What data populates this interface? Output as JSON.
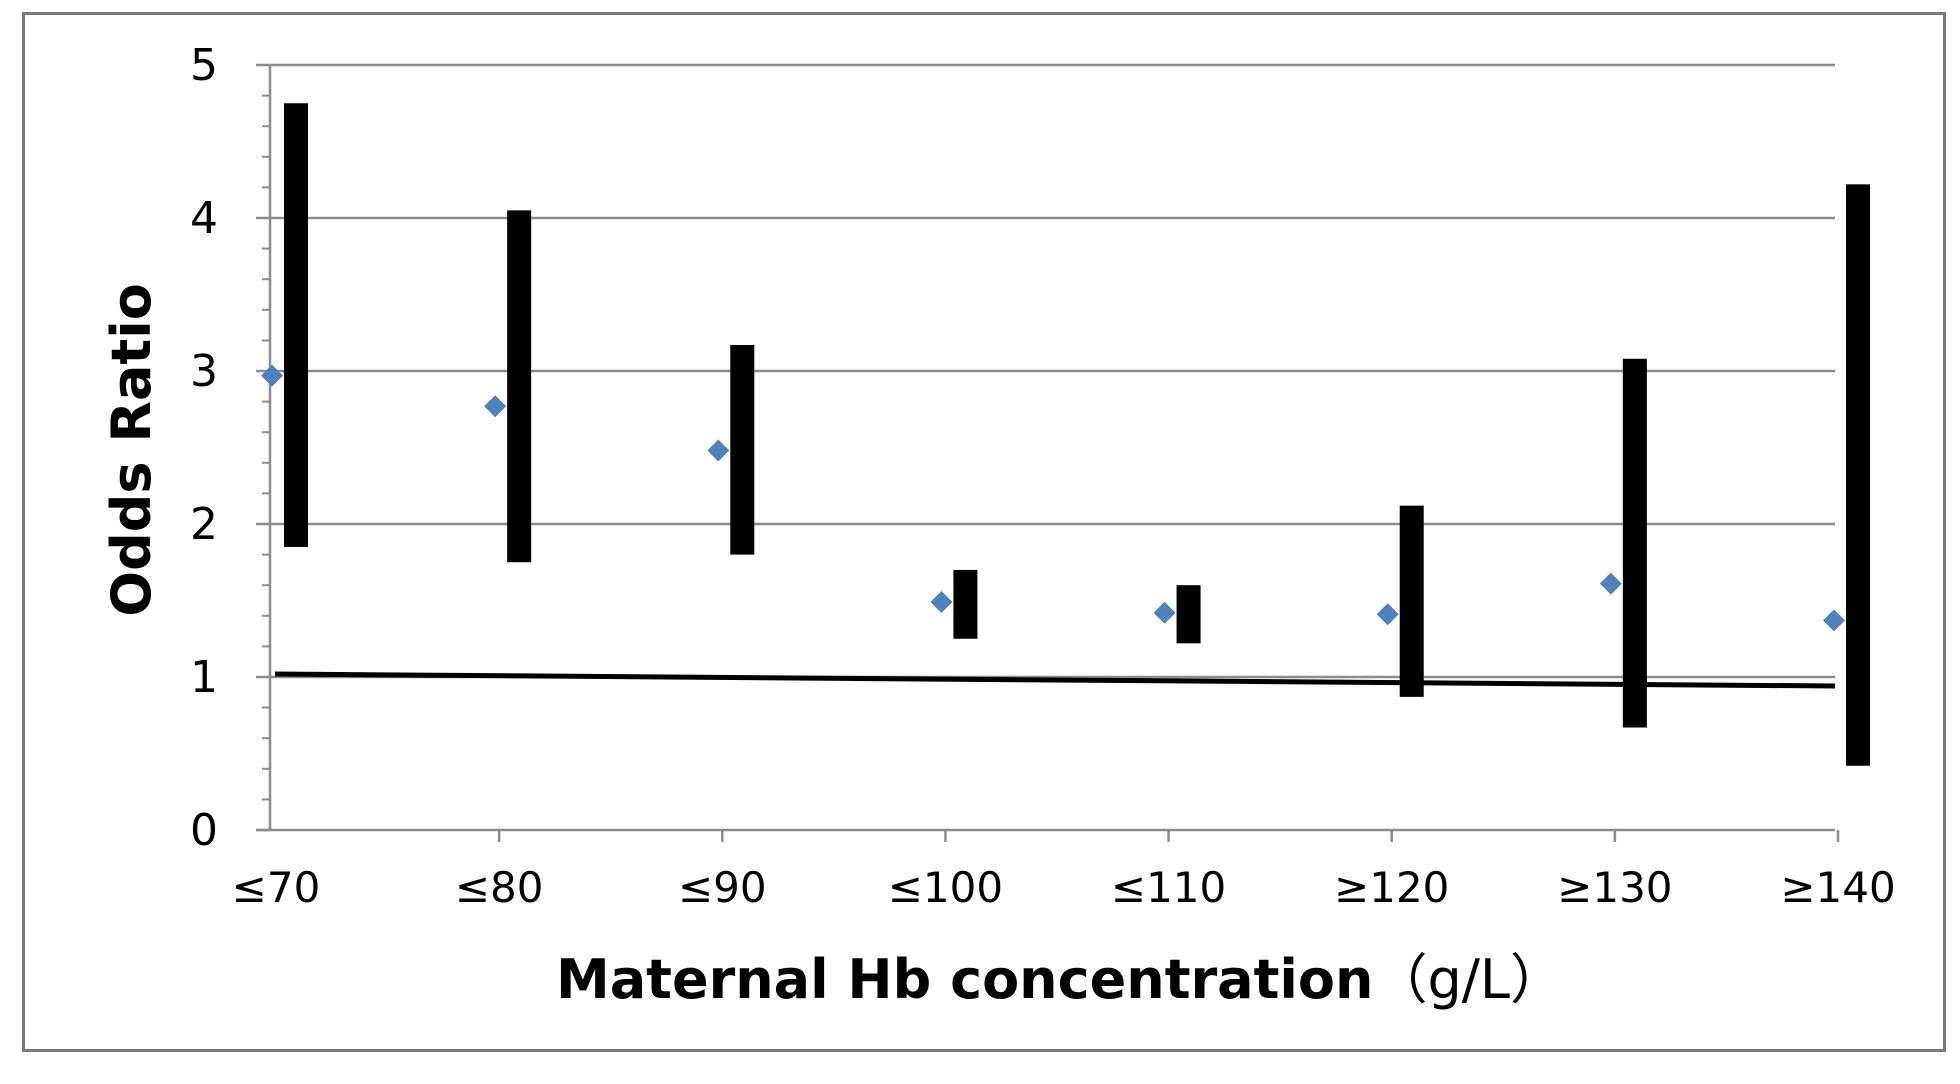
{
  "chart_data": {
    "type": "scatter",
    "title": "",
    "xlabel": "Maternal Hb concentration",
    "xlabel_unit": "（g/L）",
    "ylabel": "Odds Ratio",
    "categories": [
      "≤70",
      "≤80",
      "≤90",
      "≤100",
      "≤110",
      "≥120",
      "≥130",
      "≥140"
    ],
    "y_ticks": [
      "0",
      "1",
      "2",
      "3",
      "4",
      "5"
    ],
    "ylim": [
      0,
      5
    ],
    "grid": true,
    "reference_line": 1,
    "series": [
      {
        "odds_ratio": [
          2.97,
          2.77,
          2.48,
          1.49,
          1.42,
          1.41,
          1.61,
          1.37
        ],
        "ci_lower": [
          1.85,
          1.75,
          1.8,
          1.25,
          1.22,
          0.87,
          0.67,
          0.42
        ],
        "ci_upper": [
          4.75,
          4.05,
          3.17,
          1.7,
          1.6,
          2.12,
          3.08,
          4.22
        ]
      }
    ],
    "colors": {
      "point": "#4f81bd",
      "ci_bar": "#000000",
      "grid": "#8c8c8c",
      "axis": "#8c8c8c"
    }
  }
}
